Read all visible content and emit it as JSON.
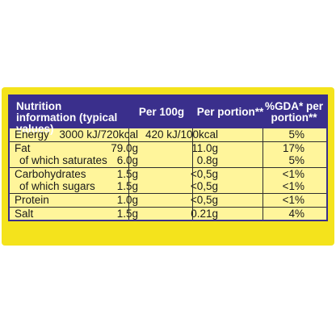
{
  "header": {
    "col1": "Nutrition information (typical values)",
    "col2": "Per 100g",
    "col3": "Per portion**",
    "col4": "%GDA* per portion**"
  },
  "rows": [
    {
      "name": "Energy",
      "per100": "3000 kJ/720kcal",
      "portion": "420 kJ/100kcal",
      "gda": "5%"
    },
    {
      "name": "Fat",
      "per100": "79.0g",
      "portion": "11.0g",
      "gda": "17%"
    },
    {
      "name": "of which saturates",
      "per100": "6.0g",
      "portion": "0.8g",
      "gda": "5%"
    },
    {
      "name": "Carbohydrates",
      "per100": "1.5g",
      "portion": "<0,5g",
      "gda": "<1%"
    },
    {
      "name": "of which sugars",
      "per100": "1.5g",
      "portion": "<0,5g",
      "gda": "<1%"
    },
    {
      "name": "Protein",
      "per100": "1.0g",
      "portion": "<0,5g",
      "gda": "<1%"
    },
    {
      "name": "Salt",
      "per100": "1.5g",
      "portion": "0.21g",
      "gda": "4%"
    }
  ]
}
